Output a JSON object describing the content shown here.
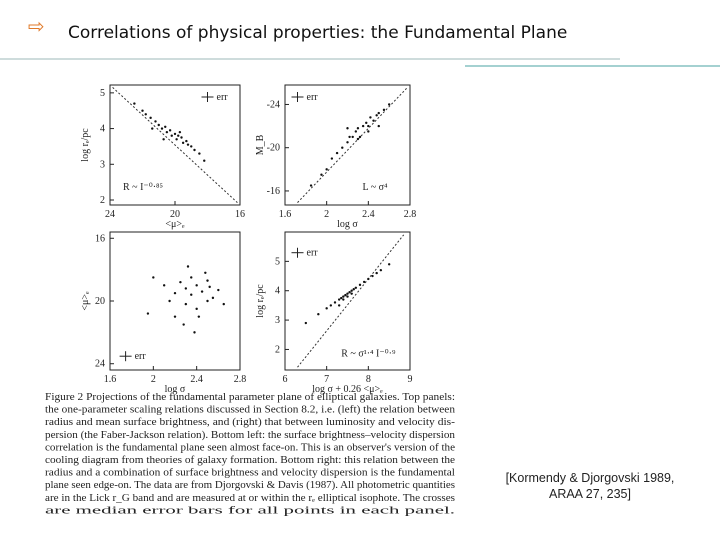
{
  "title": "Correlations of physical properties: the Fundamental Plane",
  "chart_data": [
    {
      "type": "scatter",
      "xlabel": "<μ>ₑ",
      "ylabel": "log rₑ/pc",
      "annotations": [
        "R ~ I⁻⁰·⁸⁵",
        "err"
      ],
      "color": "#111",
      "x": [
        22.5,
        22,
        21.8,
        21.5,
        21.2,
        21,
        20.8,
        20.6,
        20.5,
        20.3,
        20.2,
        20,
        19.9,
        19.8,
        19.6,
        19.5,
        19.3,
        19.2,
        19,
        18.8,
        18.5,
        18.2,
        21.4,
        20.7,
        19.7
      ],
      "values": [
        4.7,
        4.5,
        4.4,
        4.3,
        4.2,
        4.1,
        4.0,
        4.05,
        3.9,
        3.95,
        3.8,
        3.85,
        3.7,
        3.8,
        3.75,
        3.6,
        3.65,
        3.55,
        3.5,
        3.4,
        3.3,
        3.1,
        4.0,
        3.7,
        3.9
      ],
      "xlim": [
        24,
        16
      ],
      "xticks": [
        24,
        20,
        16
      ],
      "ylim": [
        1.86,
        5.22
      ],
      "yticks": [
        2,
        3,
        4,
        5
      ]
    },
    {
      "type": "scatter",
      "xlabel": "log σ",
      "ylabel": "M_B",
      "annotations": [
        "L ~ σ⁴",
        "err"
      ],
      "color": "#111",
      "x": [
        1.85,
        1.95,
        2.0,
        2.05,
        2.1,
        2.15,
        2.2,
        2.22,
        2.25,
        2.28,
        2.3,
        2.32,
        2.35,
        2.38,
        2.4,
        2.42,
        2.45,
        2.48,
        2.5,
        2.55,
        2.6,
        2.3,
        2.4,
        2.2,
        2.5
      ],
      "values": [
        -16.5,
        -17.5,
        -18,
        -19,
        -19.5,
        -20,
        -20.5,
        -21,
        -21,
        -21.5,
        -21.8,
        -21,
        -22,
        -22.3,
        -22,
        -22.8,
        -22.5,
        -23,
        -23.2,
        -23.5,
        -24,
        -20.8,
        -21.5,
        -21.8,
        -22
      ],
      "xlim": [
        1.6,
        2.8
      ],
      "xticks": [
        1.6,
        2,
        2.4,
        2.8
      ],
      "ylim": [
        -14.7,
        -25.8
      ],
      "yticks": [
        -24,
        -20,
        -16
      ]
    },
    {
      "type": "scatter",
      "xlabel": "log σ",
      "ylabel": "<μ>ₑ",
      "annotations": [
        "err"
      ],
      "color": "#111",
      "x": [
        2.0,
        2.1,
        2.15,
        2.2,
        2.25,
        2.3,
        2.3,
        2.35,
        2.35,
        2.4,
        2.4,
        2.45,
        2.5,
        2.5,
        2.55,
        2.6,
        2.2,
        2.28,
        2.42,
        2.48,
        1.95,
        2.65,
        2.32,
        2.38,
        2.52
      ],
      "values": [
        18.5,
        19,
        20,
        19.5,
        18.8,
        19.2,
        20.2,
        19.6,
        18.5,
        19,
        20.5,
        19.4,
        18.7,
        20,
        19.8,
        19.3,
        21,
        21.5,
        21,
        18.2,
        20.8,
        20.2,
        17.8,
        22,
        19.1
      ],
      "xlim": [
        1.6,
        2.8
      ],
      "xticks": [
        1.6,
        2,
        2.4,
        2.8
      ],
      "ylim": [
        24.4,
        15.6
      ],
      "yticks": [
        16,
        20,
        24
      ]
    },
    {
      "type": "scatter",
      "xlabel": "log σ + 0.26 <μ>ₑ",
      "ylabel": "log rₑ/pc",
      "annotations": [
        "R ~ σ¹·⁴ I⁻⁰·⁹",
        "err"
      ],
      "color": "#111",
      "x": [
        6.5,
        6.8,
        7.0,
        7.1,
        7.2,
        7.3,
        7.35,
        7.4,
        7.45,
        7.5,
        7.55,
        7.6,
        7.65,
        7.7,
        7.8,
        7.9,
        8.0,
        8.1,
        8.2,
        8.3,
        7.4,
        7.5,
        7.6,
        7.3,
        8.5
      ],
      "values": [
        2.9,
        3.2,
        3.4,
        3.5,
        3.6,
        3.7,
        3.75,
        3.8,
        3.85,
        3.9,
        3.95,
        4.0,
        4.05,
        4.1,
        4.2,
        4.3,
        4.4,
        4.5,
        4.6,
        4.7,
        3.7,
        3.8,
        3.9,
        3.5,
        4.9
      ],
      "xlim": [
        6,
        9
      ],
      "xticks": [
        6,
        7,
        8,
        9
      ],
      "ylim": [
        1.3,
        6.0
      ],
      "yticks": [
        2,
        3,
        4,
        5
      ]
    }
  ],
  "caption": [
    "Figure 2   Projections of the fundamental parameter plane of elliptical galaxies. Top panels:",
    "the one-parameter scaling relations discussed in Section 8.2, i.e. (left) the relation between",
    "radius and mean surface brightness, and (right) that between luminosity and velocity dis-",
    "persion (the Faber-Jackson relation). Bottom left: the surface brightness–velocity dispersion",
    "correlation is the fundamental plane seen almost face-on. This is an observer's version of the",
    "cooling diagram from theories of galaxy formation. Bottom right: this relation between the",
    "radius and a combination of surface brightness and velocity dispersion is the fundamental",
    "plane seen edge-on. The data are from Djorgovski & Davis (1987). All photometric quantities",
    "are in the Lick r_G band and are measured at or within the rₑ elliptical isophote. The crosses",
    "are median error bars for all points in each panel."
  ],
  "citation": [
    "[Kormendy & Djorgovski 1989,",
    "ARAA 27, 235]"
  ]
}
